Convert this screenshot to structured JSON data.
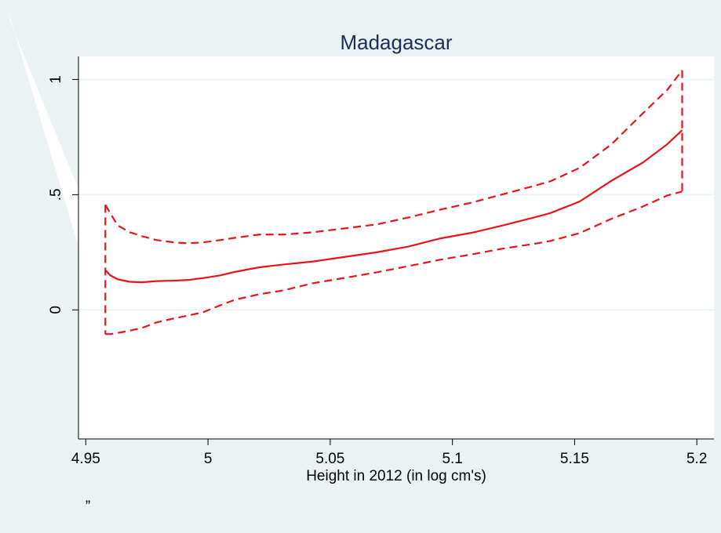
{
  "chart_data": {
    "type": "line",
    "title": "Madagascar",
    "xlabel": "Height in 2012 (in log cm's)",
    "caption": "”",
    "x": [
      4.958,
      4.96,
      4.963,
      4.968,
      4.973,
      4.979,
      4.986,
      4.992,
      4.998,
      5.005,
      5.011,
      5.021,
      5.031,
      5.043,
      5.056,
      5.069,
      5.082,
      5.095,
      5.108,
      5.12,
      5.133,
      5.14,
      5.152,
      5.165,
      5.178,
      5.188,
      5.194
    ],
    "series": [
      {
        "color": "#e8141c",
        "dashed": false,
        "values": [
          0.173,
          0.15,
          0.133,
          0.122,
          0.12,
          0.125,
          0.127,
          0.13,
          0.138,
          0.15,
          0.165,
          0.185,
          0.197,
          0.21,
          0.23,
          0.25,
          0.275,
          0.31,
          0.335,
          0.365,
          0.4,
          0.42,
          0.47,
          0.56,
          0.64,
          0.72,
          0.78
        ]
      },
      {
        "color": "#e8141c",
        "dashed": true,
        "values": [
          0.456,
          0.42,
          0.367,
          0.337,
          0.32,
          0.303,
          0.293,
          0.289,
          0.293,
          0.303,
          0.313,
          0.327,
          0.327,
          0.337,
          0.354,
          0.371,
          0.401,
          0.435,
          0.466,
          0.5,
          0.537,
          0.558,
          0.616,
          0.718,
          0.854,
          0.956,
          1.04
        ]
      },
      {
        "color": "#e8141c",
        "dashed": true,
        "values": [
          -0.105,
          -0.105,
          -0.1,
          -0.09,
          -0.078,
          -0.054,
          -0.037,
          -0.024,
          -0.01,
          0.02,
          0.044,
          0.068,
          0.085,
          0.116,
          0.139,
          0.163,
          0.19,
          0.218,
          0.241,
          0.265,
          0.286,
          0.299,
          0.333,
          0.395,
          0.449,
          0.497,
          0.514
        ]
      }
    ],
    "xlim": [
      4.947,
      5.207
    ],
    "xticks": [
      4.95,
      5,
      5.05,
      5.1,
      5.15,
      5.2
    ],
    "ylim": [
      -0.56,
      1.1
    ],
    "yticks": [
      0,
      {
        "value": 0.5,
        "label": ".5"
      },
      1
    ],
    "grid": true
  }
}
